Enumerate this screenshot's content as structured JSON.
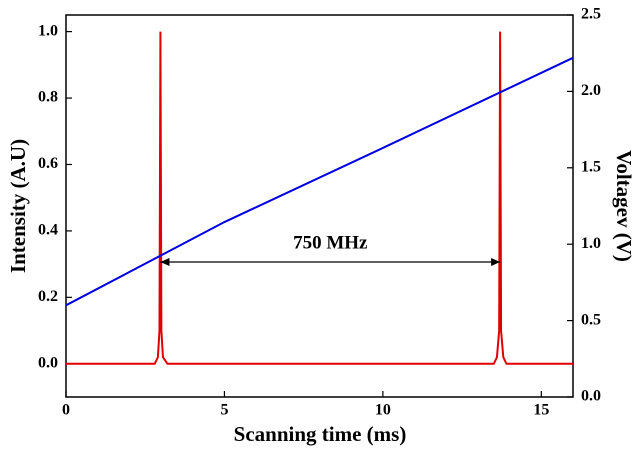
{
  "chart_data": {
    "type": "line",
    "x_label": "Scanning time (ms)",
    "y_label": "Intensity (A.U)",
    "y2_label": "Voltagev (V)",
    "annotation": "750 MHz",
    "xlim": [
      0,
      16
    ],
    "xticks": [
      0,
      5,
      10,
      15
    ],
    "ylim": [
      -0.1,
      1.05
    ],
    "yticks": [
      {
        "value": 0,
        "label": "0.0"
      },
      0.2,
      0.4,
      0.6,
      0.8,
      {
        "value": 1,
        "label": "1.0"
      }
    ],
    "y2lim": [
      0,
      2.5
    ],
    "y2ticks": [
      {
        "value": 0,
        "label": "0.0"
      },
      0.5,
      {
        "value": 1,
        "label": "1.0"
      },
      1.5,
      {
        "value": 2,
        "label": "2.0"
      },
      2.5
    ],
    "series": [
      {
        "name": "Intensity",
        "color": "#e00000",
        "x": [
          0,
          2.8,
          2.9,
          2.95,
          2.98,
          3.01,
          3.06,
          3.2,
          13.5,
          13.6,
          13.67,
          13.7,
          13.73,
          13.8,
          13.9,
          16
        ],
        "values": [
          0,
          0,
          0.02,
          0.1,
          1.0,
          0.1,
          0.02,
          0,
          0,
          0.02,
          0.1,
          1.0,
          0.1,
          0.02,
          0,
          0
        ]
      },
      {
        "name": "Voltage",
        "color": "#0000e0",
        "axis": "y2",
        "x": [
          0,
          5,
          10,
          16
        ],
        "values": [
          0.6,
          1.145,
          1.63,
          2.22
        ]
      }
    ]
  }
}
